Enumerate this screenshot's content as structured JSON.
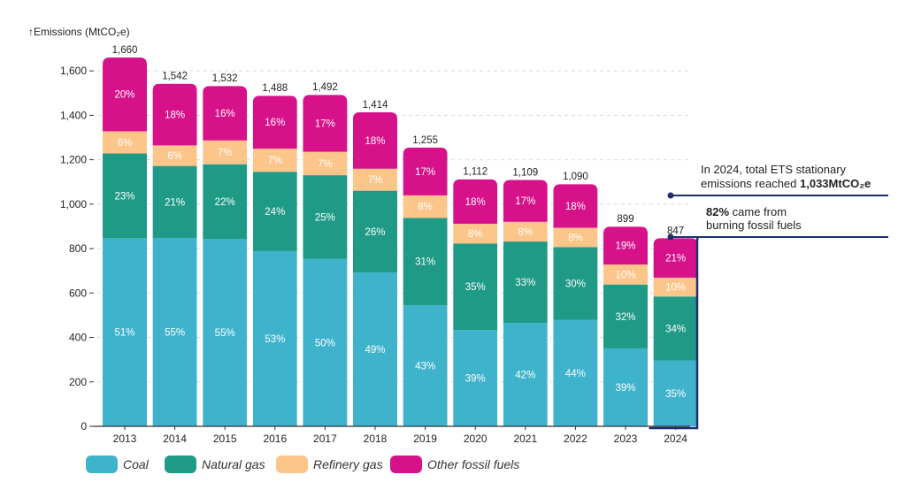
{
  "chart_data": {
    "type": "bar",
    "stacked": true,
    "ylabel": "Emissions (MtCO₂e)",
    "ylim": [
      0,
      1700
    ],
    "yticks": [
      0,
      200,
      400,
      600,
      800,
      "1,000",
      "1,200",
      "1,400",
      "1,600"
    ],
    "ytick_values": [
      0,
      200,
      400,
      600,
      800,
      1000,
      1200,
      1400,
      1600
    ],
    "categories": [
      "2013",
      "2014",
      "2015",
      "2016",
      "2017",
      "2018",
      "2019",
      "2020",
      "2021",
      "2022",
      "2023",
      "2024"
    ],
    "totals": [
      1660,
      1542,
      1532,
      1488,
      1492,
      1414,
      1255,
      1112,
      1109,
      1090,
      899,
      847
    ],
    "total_labels": [
      "1,660",
      "1,542",
      "1,532",
      "1,488",
      "1,492",
      "1,414",
      "1,255",
      "1,112",
      "1,109",
      "1,090",
      "899",
      "847"
    ],
    "series": [
      {
        "name": "Coal",
        "color": "#3fb3cc",
        "percent": [
          51,
          55,
          55,
          53,
          50,
          49,
          43,
          39,
          42,
          44,
          39,
          35
        ]
      },
      {
        "name": "Natural gas",
        "color": "#1f9a86",
        "percent": [
          23,
          21,
          22,
          24,
          25,
          26,
          31,
          35,
          33,
          30,
          32,
          34
        ]
      },
      {
        "name": "Refinery gas",
        "color": "#fcc58a",
        "percent": [
          6,
          6,
          7,
          7,
          7,
          7,
          8,
          8,
          8,
          8,
          10,
          10
        ]
      },
      {
        "name": "Other fossil fuels",
        "color": "#d6118a",
        "percent": [
          20,
          18,
          16,
          16,
          17,
          18,
          17,
          18,
          17,
          18,
          19,
          21
        ]
      }
    ],
    "grid": true,
    "legend_position": "bottom-left",
    "annotations": [
      {
        "line1": "In 2024, total ETS stationary",
        "line2_prefix": "emissions reached ",
        "line2_bold": "1,033MtCO₂e"
      },
      {
        "line1_bold": "82%",
        "line1_rest": " came from",
        "line2": "burning fossil fuels"
      }
    ],
    "annotation_color": "#1f2f6e"
  }
}
